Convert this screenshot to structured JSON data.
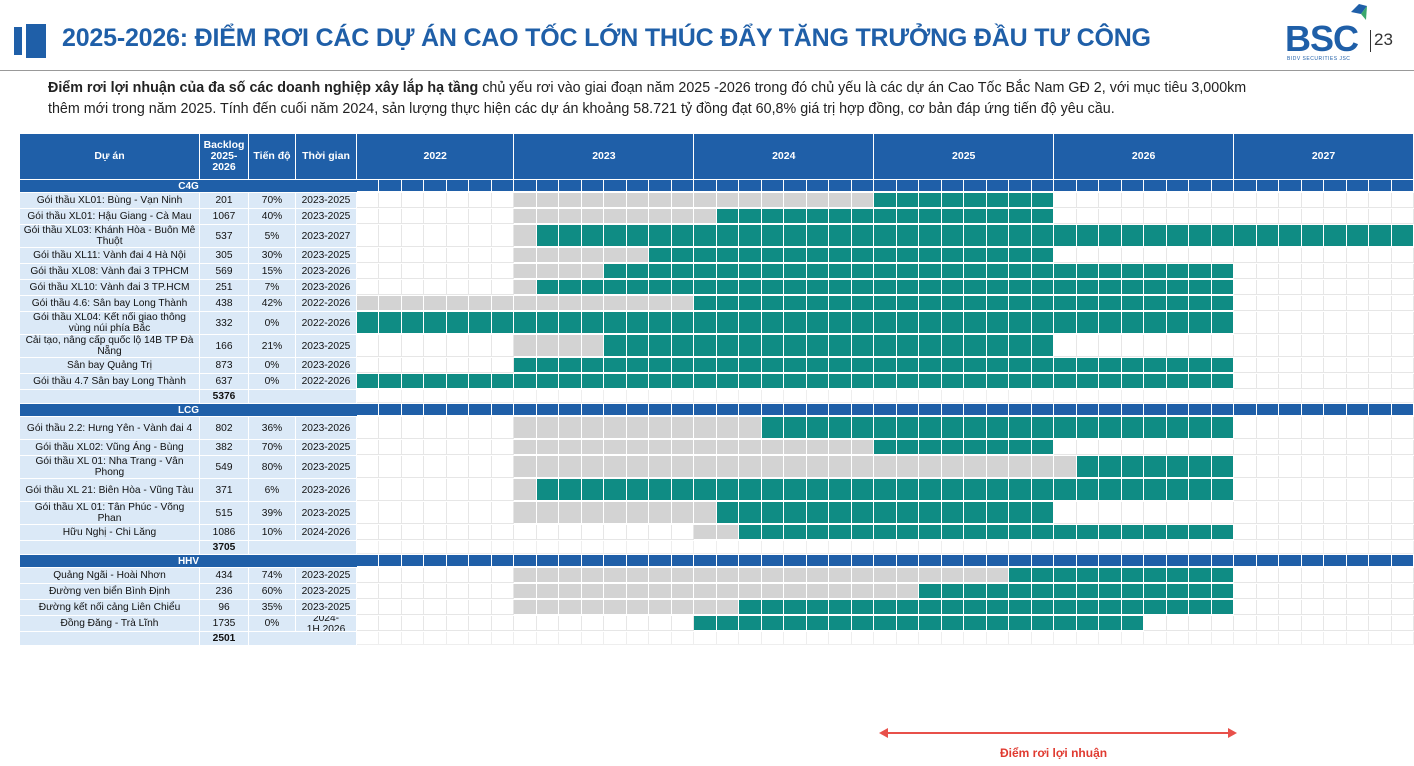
{
  "header": {
    "title": "2025-2026: ĐIỂM RƠI CÁC DỰ ÁN CAO TỐC LỚN THÚC ĐẨY TĂNG TRƯỞNG ĐẦU TƯ CÔNG",
    "logo_text": "BSC",
    "logo_sub": "BIDV SECURITIES JSC",
    "page_number": "23",
    "accent_color": "#1f5fa8"
  },
  "intro": {
    "bold_part": "Điểm rơi lợi nhuận của đa số các doanh nghiệp xây lắp hạ tầng",
    "line1_rest": " chủ yếu rơi vào giai đoạn năm 2025 -2026 trong đó chủ yếu là các dự án Cao Tốc Bắc Nam GĐ 2, với mục tiêu 3,000km",
    "line2": "thêm mới trong năm 2025. Tính đến cuối năm 2024, sản lượng thực hiện các dự án khoảng 58.721 tỷ đồng đạt 60,8% giá trị hợp đồng, cơ bản đáp ứng tiến độ yêu cầu."
  },
  "table": {
    "columns": {
      "project": "Dự án",
      "backlog": "Backlog 2025-2026",
      "progress": "Tiến độ",
      "period": "Thời gian"
    },
    "years": [
      "2022",
      "2023",
      "2024",
      "2025",
      "2026",
      "2027"
    ],
    "colors": {
      "header_blue": "#1f5fa8",
      "teal": "#0f8c84",
      "gray": "#d3d3d3",
      "label_bg": "#dbe9f7"
    },
    "groups": [
      {
        "name": "C4G",
        "total": "5376",
        "rows": [
          {
            "project": "Gói thầu XL01: Bùng - Vạn Ninh",
            "backlog": "201",
            "progress": "70%",
            "period": "2023-2025",
            "gray": [
              [
                7,
                23
              ]
            ],
            "teal": [
              [
                23,
                31
              ]
            ]
          },
          {
            "project": "Gói thầu XL01: Hậu Giang - Cà Mau",
            "backlog": "1067",
            "progress": "40%",
            "period": "2023-2025",
            "gray": [
              [
                7,
                16
              ]
            ],
            "teal": [
              [
                16,
                31
              ]
            ]
          },
          {
            "project": "Gói thầu XL03: Khánh Hòa - Buôn Mê Thuột",
            "backlog": "537",
            "progress": "5%",
            "period": "2023-2027",
            "gray": [
              [
                7,
                8
              ]
            ],
            "teal": [
              [
                8,
                47
              ]
            ]
          },
          {
            "project": "Gói thầu XL11: Vành đai 4 Hà Nội",
            "backlog": "305",
            "progress": "30%",
            "period": "2023-2025",
            "gray": [
              [
                7,
                13
              ]
            ],
            "teal": [
              [
                13,
                31
              ]
            ]
          },
          {
            "project": "Gói thầu XL08: Vành đai 3 TPHCM",
            "backlog": "569",
            "progress": "15%",
            "period": "2023-2026",
            "gray": [
              [
                7,
                11
              ]
            ],
            "teal": [
              [
                11,
                39
              ]
            ]
          },
          {
            "project": "Gói thầu XL10: Vành đai 3 TP.HCM",
            "backlog": "251",
            "progress": "7%",
            "period": "2023-2026",
            "gray": [
              [
                7,
                8
              ]
            ],
            "teal": [
              [
                8,
                39
              ]
            ]
          },
          {
            "project": "Gói thầu 4.6: Sân bay Long Thành",
            "backlog": "438",
            "progress": "42%",
            "period": "2022-2026",
            "gray": [
              [
                0,
                15
              ]
            ],
            "teal": [
              [
                15,
                39
              ]
            ]
          },
          {
            "project": "Gói thầu XL04: Kết nối giao thông vùng núi phía Bắc",
            "backlog": "332",
            "progress": "0%",
            "period": "2022-2026",
            "gray": [],
            "teal": [
              [
                0,
                39
              ]
            ]
          },
          {
            "project": "Cải tạo, nâng cấp quốc lộ 14B TP Đà Nẵng",
            "backlog": "166",
            "progress": "21%",
            "period": "2023-2025",
            "gray": [
              [
                7,
                11
              ]
            ],
            "teal": [
              [
                11,
                31
              ]
            ]
          },
          {
            "project": "Sân bay Quảng Trị",
            "backlog": "873",
            "progress": "0%",
            "period": "2023-2026",
            "gray": [],
            "teal": [
              [
                7,
                39
              ]
            ]
          },
          {
            "project": "Gói thầu 4.7 Sân bay Long Thành",
            "backlog": "637",
            "progress": "0%",
            "period": "2022-2026",
            "gray": [],
            "teal": [
              [
                0,
                39
              ]
            ]
          }
        ]
      },
      {
        "name": "LCG",
        "total": "3705",
        "rows": [
          {
            "project": "Gói thầu 2.2: Hưng Yên - Vành đai 4",
            "backlog": "802",
            "progress": "36%",
            "period": "2023-2026",
            "gray": [
              [
                7,
                18
              ]
            ],
            "teal": [
              [
                18,
                39
              ]
            ]
          },
          {
            "project": "Gói thầu XL02: Vũng Áng - Bùng",
            "backlog": "382",
            "progress": "70%",
            "period": "2023-2025",
            "gray": [
              [
                7,
                23
              ]
            ],
            "teal": [
              [
                23,
                31
              ]
            ]
          },
          {
            "project": "Gói thầu XL 01: Nha Trang - Vân Phong",
            "backlog": "549",
            "progress": "80%",
            "period": "2023-2025",
            "gray": [
              [
                7,
                32
              ]
            ],
            "teal": [
              [
                32,
                39
              ]
            ]
          },
          {
            "project": "Gói thầu XL 21: Biên Hòa - Vũng Tàu",
            "backlog": "371",
            "progress": "6%",
            "period": "2023-2026",
            "gray": [
              [
                7,
                8
              ]
            ],
            "teal": [
              [
                8,
                39
              ]
            ]
          },
          {
            "project": "Gói thầu XL 01: Tân Phúc - Võng Phan",
            "backlog": "515",
            "progress": "39%",
            "period": "2023-2025",
            "gray": [
              [
                7,
                16
              ]
            ],
            "teal": [
              [
                16,
                31
              ]
            ]
          },
          {
            "project": "Hữu Nghị - Chi Lăng",
            "backlog": "1086",
            "progress": "10%",
            "period": "2024-2026",
            "gray": [
              [
                15,
                17
              ]
            ],
            "teal": [
              [
                17,
                39
              ]
            ]
          }
        ]
      },
      {
        "name": "HHV",
        "total": "2501",
        "rows": [
          {
            "project": "Quảng Ngãi - Hoài Nhơn",
            "backlog": "434",
            "progress": "74%",
            "period": "2023-2025",
            "gray": [
              [
                7,
                29
              ]
            ],
            "teal": [
              [
                29,
                39
              ]
            ]
          },
          {
            "project": "Đường ven biển Bình Định",
            "backlog": "236",
            "progress": "60%",
            "period": "2023-2025",
            "gray": [
              [
                7,
                25
              ]
            ],
            "teal": [
              [
                25,
                39
              ]
            ]
          },
          {
            "project": "Đường kết nối cảng Liên Chiểu",
            "backlog": "96",
            "progress": "35%",
            "period": "2023-2025",
            "gray": [
              [
                7,
                17
              ]
            ],
            "teal": [
              [
                17,
                39
              ]
            ]
          },
          {
            "project": "Đồng Đăng - Trà Lĩnh",
            "backlog": "1735",
            "progress": "0%",
            "period": "2024-1H.2026",
            "gray": [],
            "teal": [
              [
                15,
                35
              ]
            ]
          }
        ]
      }
    ]
  },
  "annotation": {
    "label": "Điểm rơi lợi nhuận",
    "color": "#e03a30"
  }
}
